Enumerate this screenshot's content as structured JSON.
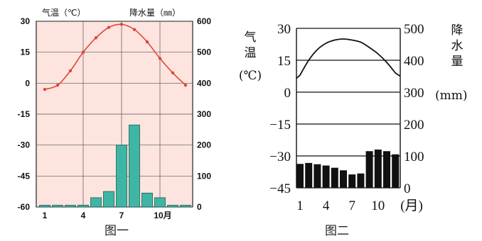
{
  "chart_data": [
    {
      "type": "bar+line",
      "caption": "图一",
      "temp_axis_title": "气温（℃）",
      "precip_axis_title": "降水量（㎜）",
      "x": [
        1,
        2,
        3,
        4,
        5,
        6,
        7,
        8,
        9,
        10,
        11,
        12
      ],
      "x_ticks": [
        "1",
        "4",
        "7",
        "10月"
      ],
      "temp_ticks": [
        "30",
        "15",
        "0",
        "-15",
        "-30",
        "-45",
        "-60"
      ],
      "temp_range": [
        -60,
        30
      ],
      "precip_ticks": [
        "600",
        "500",
        "400",
        "300",
        "200",
        "100",
        "0"
      ],
      "precip_range": [
        0,
        600
      ],
      "temperature": [
        -3,
        -1,
        6,
        15,
        22,
        27,
        28.5,
        26,
        20,
        12,
        5,
        -1
      ],
      "precipitation": [
        3,
        3,
        3,
        6,
        30,
        50,
        200,
        265,
        45,
        30,
        3,
        3
      ],
      "background": "#fde4df",
      "bar_color": "#3fb5a5",
      "line_color": "#e0453c",
      "grid": true
    },
    {
      "type": "bar+line",
      "caption": "图二",
      "temp_axis_title": "气温(℃)",
      "precip_axis_title": "降水量",
      "precip_unit": "(mm)",
      "x": [
        1,
        2,
        3,
        4,
        5,
        6,
        7,
        8,
        9,
        10,
        11,
        12
      ],
      "x_ticks": [
        "1",
        "4",
        "7",
        "10",
        "(月)"
      ],
      "temp_ticks": [
        "30",
        "15",
        "0",
        "−15",
        "−30",
        "−45"
      ],
      "temp_range": [
        -45,
        30
      ],
      "precip_ticks": [
        "500",
        "400",
        "300",
        "200",
        "100",
        "0"
      ],
      "precip_range": [
        0,
        500
      ],
      "temperature": [
        8,
        15,
        20,
        23,
        24.5,
        25,
        24.5,
        23.5,
        21,
        18,
        14,
        9
      ],
      "precipitation": [
        75,
        78,
        74,
        70,
        63,
        55,
        42,
        45,
        115,
        120,
        115,
        105
      ],
      "background": "#ffffff",
      "bar_color": "#111111",
      "line_color": "#111111",
      "grid": true
    }
  ]
}
